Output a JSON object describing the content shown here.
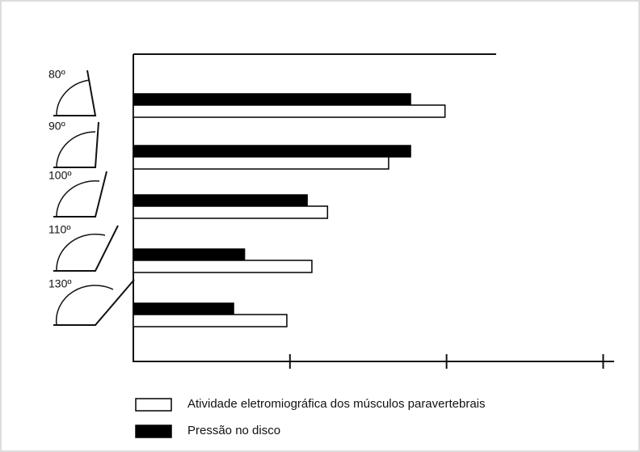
{
  "chart_data": {
    "type": "hbar",
    "categories": [
      "80º",
      "90º",
      "100º",
      "110º",
      "130º"
    ],
    "series": [
      {
        "name": "Atividade eletromiográfica dos músculos paravertebrais",
        "color": "#ffffff",
        "values": [
          1.99,
          1.63,
          1.24,
          1.14,
          0.98
        ]
      },
      {
        "name": "Pressão no disco",
        "color": "#000000",
        "values": [
          1.77,
          1.77,
          1.11,
          0.71,
          0.64
        ]
      }
    ],
    "xlim": [
      0,
      3.07
    ],
    "xticks": [
      1,
      2,
      3
    ]
  }
}
